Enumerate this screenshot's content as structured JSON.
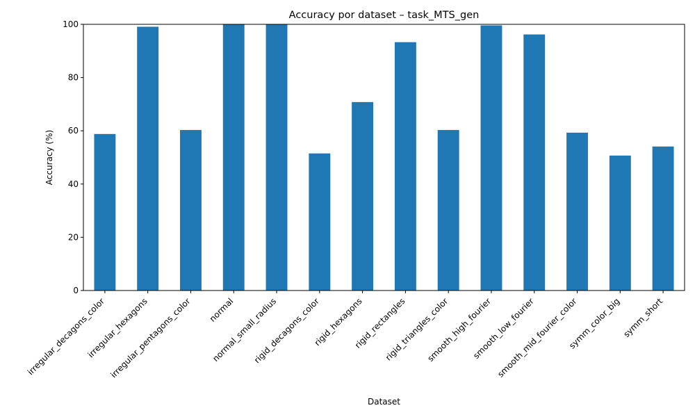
{
  "chart_data": {
    "type": "bar",
    "title": "Accuracy por dataset – task_MTS_gen",
    "xlabel": "Dataset",
    "ylabel": "Accuracy (%)",
    "ylim": [
      0,
      100
    ],
    "yticks": [
      0,
      20,
      40,
      60,
      80,
      100
    ],
    "grid": false,
    "legend": false,
    "bar_color": "#1f77b4",
    "categories": [
      "irregular_decagons_color",
      "irregular_hexagons",
      "irregular_pentagons_color",
      "normal",
      "normal_small_radius",
      "rigid_decagons_color",
      "rigid_hexagons",
      "rigid_rectangles",
      "rigid_triangles_color",
      "smooth_high_fourier",
      "smooth_low_fourier",
      "smooth_mid_fourier_color",
      "symm_color_big",
      "symm_short"
    ],
    "values": [
      58.8,
      99.1,
      60.3,
      100.0,
      100.0,
      51.5,
      70.8,
      93.3,
      60.3,
      99.6,
      96.2,
      59.3,
      50.7,
      54.1
    ]
  }
}
